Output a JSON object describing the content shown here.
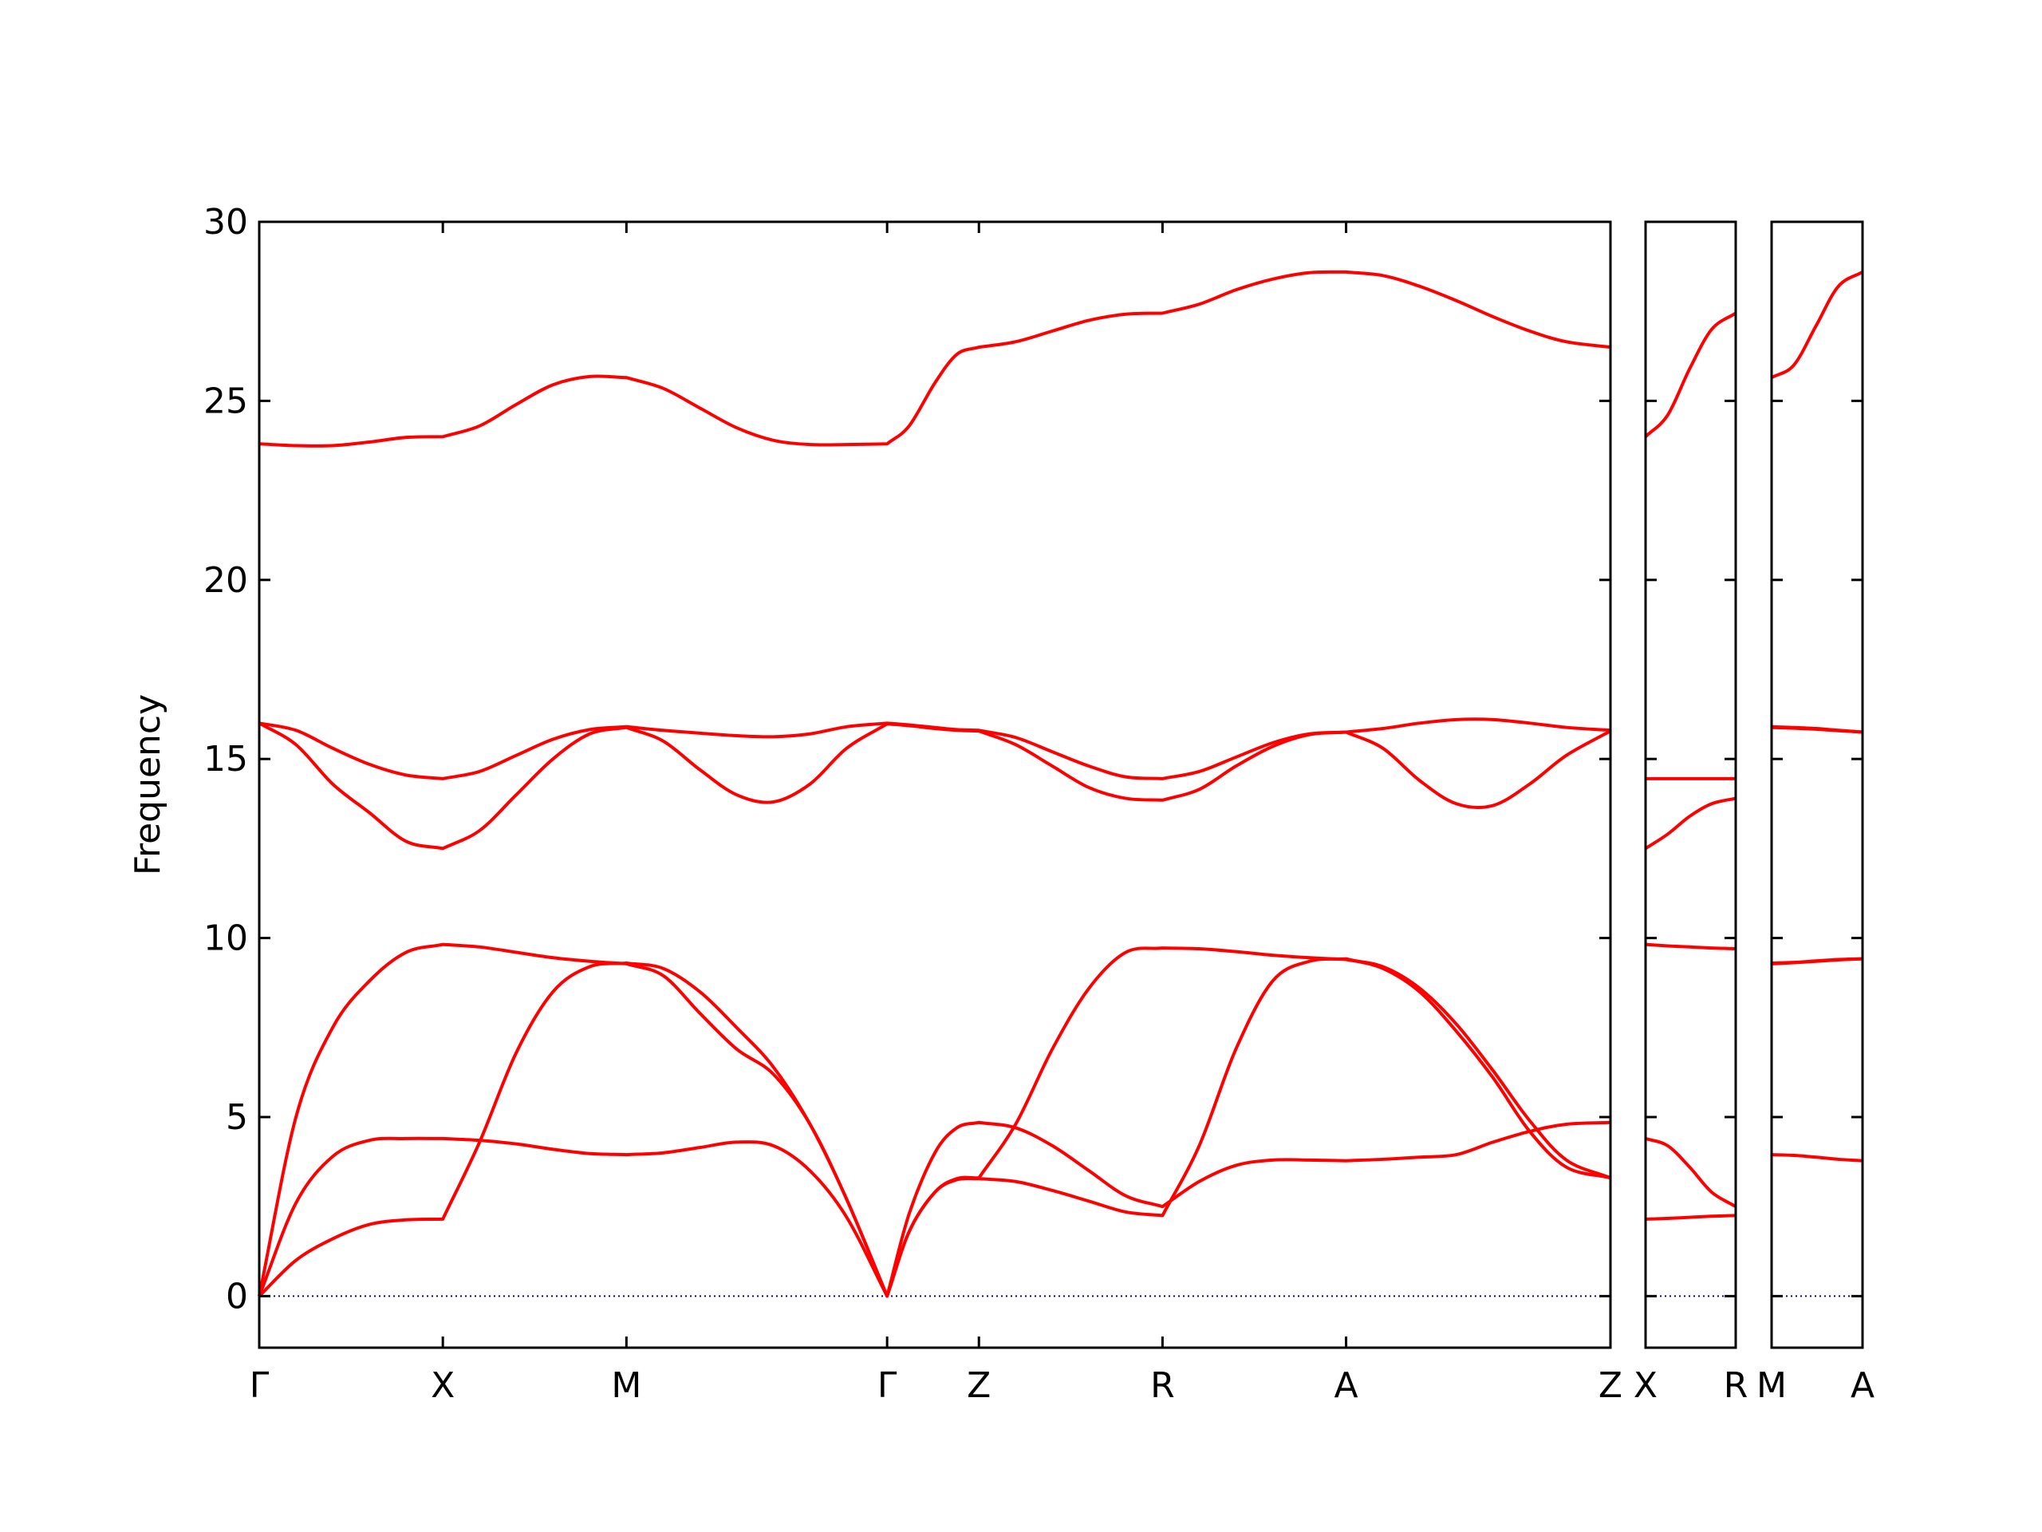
{
  "chart_data": [
    {
      "type": "line",
      "ylabel": "Frequency",
      "ylim": [
        -1.44,
        30
      ],
      "yticks": [
        0,
        5,
        10,
        15,
        20,
        25,
        30
      ],
      "ytick_labels": true,
      "xlim": [
        0,
        3.68
      ],
      "xticks": [
        {
          "value": 0,
          "label": "Γ"
        },
        {
          "value": 0.5,
          "label": "X"
        },
        {
          "value": 1.0,
          "label": "M"
        },
        {
          "value": 1.71,
          "label": "Γ"
        },
        {
          "value": 1.96,
          "label": "Z"
        },
        {
          "value": 2.46,
          "label": "R"
        },
        {
          "value": 2.96,
          "label": "A"
        },
        {
          "value": 3.68,
          "label": "Z"
        }
      ],
      "hline": 0,
      "hline_color": "#0000cc",
      "x": [
        0,
        0.1,
        0.2,
        0.3,
        0.4,
        0.5,
        0.6,
        0.7,
        0.8,
        0.9,
        1.0,
        1.1,
        1.2,
        1.3,
        1.4,
        1.5,
        1.6,
        1.71,
        1.77,
        1.84,
        1.9,
        1.96,
        2.06,
        2.16,
        2.26,
        2.36,
        2.46,
        2.56,
        2.66,
        2.76,
        2.86,
        2.96,
        3.06,
        3.16,
        3.26,
        3.36,
        3.46,
        3.56,
        3.68
      ],
      "series": [
        {
          "color": "#ff0000",
          "values": [
            23.8,
            23.75,
            23.75,
            23.85,
            23.98,
            24.0,
            24.3,
            24.9,
            25.45,
            25.68,
            25.65,
            25.35,
            24.8,
            24.25,
            23.9,
            23.78,
            23.78,
            23.8,
            24.3,
            25.5,
            26.3,
            26.5,
            26.65,
            26.95,
            27.25,
            27.42,
            27.45,
            27.7,
            28.1,
            28.4,
            28.58,
            28.6,
            28.5,
            28.2,
            27.8,
            27.35,
            26.95,
            26.65,
            26.5
          ]
        },
        {
          "color": "#ff0000",
          "values": [
            16.0,
            15.8,
            15.3,
            14.85,
            14.55,
            14.45,
            14.65,
            15.1,
            15.55,
            15.82,
            15.9,
            15.8,
            15.72,
            15.65,
            15.62,
            15.7,
            15.9,
            16.0,
            15.95,
            15.88,
            15.82,
            15.8,
            15.6,
            15.2,
            14.8,
            14.5,
            14.45,
            14.65,
            15.05,
            15.45,
            15.7,
            15.75,
            15.85,
            16.0,
            16.1,
            16.1,
            16.0,
            15.88,
            15.8
          ]
        },
        {
          "color": "#ff0000",
          "values": [
            16.0,
            15.4,
            14.3,
            13.5,
            12.7,
            12.5,
            13.0,
            14.0,
            15.0,
            15.7,
            15.88,
            15.5,
            14.7,
            14.0,
            13.8,
            14.3,
            15.3,
            15.98,
            15.93,
            15.85,
            15.8,
            15.78,
            15.4,
            14.8,
            14.2,
            13.9,
            13.85,
            14.15,
            14.8,
            15.35,
            15.68,
            15.75,
            15.3,
            14.4,
            13.75,
            13.7,
            14.3,
            15.1,
            15.78
          ]
        },
        {
          "color": "#ff0000",
          "values": [
            0,
            1.0,
            1.6,
            2.0,
            2.13,
            2.15,
            4.3,
            6.8,
            8.5,
            9.2,
            9.3,
            9.15,
            8.5,
            7.5,
            6.4,
            4.8,
            2.7,
            0,
            1.8,
            2.9,
            3.28,
            3.3,
            4.8,
            6.9,
            8.6,
            9.6,
            9.72,
            9.7,
            9.62,
            9.52,
            9.45,
            9.4,
            9.2,
            8.6,
            7.6,
            6.3,
            4.9,
            3.8,
            3.3
          ]
        },
        {
          "color": "#ff0000",
          "values": [
            0,
            2.6,
            3.9,
            4.35,
            4.4,
            4.4,
            4.35,
            4.25,
            4.1,
            3.98,
            3.95,
            4.0,
            4.15,
            4.3,
            4.2,
            3.5,
            2.2,
            0,
            2.3,
            4.0,
            4.7,
            4.85,
            4.7,
            4.2,
            3.5,
            2.8,
            2.5,
            3.2,
            3.65,
            3.8,
            3.8,
            3.78,
            3.82,
            3.88,
            3.95,
            4.3,
            4.6,
            4.8,
            4.85
          ]
        },
        {
          "color": "#ff0000",
          "values": [
            0,
            5.0,
            7.5,
            8.8,
            9.6,
            9.82,
            9.75,
            9.6,
            9.45,
            9.35,
            9.28,
            8.95,
            7.9,
            6.9,
            6.2,
            4.8,
            2.7,
            0,
            1.8,
            2.9,
            3.25,
            3.28,
            3.2,
            2.95,
            2.65,
            2.35,
            2.25,
            4.2,
            6.9,
            8.8,
            9.35,
            9.42,
            9.15,
            8.5,
            7.4,
            6.1,
            4.6,
            3.6,
            3.3
          ]
        }
      ]
    },
    {
      "type": "line",
      "ylim": [
        -1.44,
        30
      ],
      "yticks": [
        0,
        5,
        10,
        15,
        20,
        25,
        30
      ],
      "ytick_labels": false,
      "xlim": [
        0,
        0.245
      ],
      "xticks": [
        {
          "value": 0,
          "label": "X"
        },
        {
          "value": 0.245,
          "label": "R"
        }
      ],
      "hline": 0,
      "hline_color": "#0000cc",
      "x": [
        0,
        0.06,
        0.12,
        0.18,
        0.245
      ],
      "series": [
        {
          "color": "#ff0000",
          "values": [
            24.0,
            24.6,
            25.9,
            27.0,
            27.45
          ]
        },
        {
          "color": "#ff0000",
          "values": [
            14.45,
            14.45,
            14.45,
            14.45,
            14.45
          ]
        },
        {
          "color": "#ff0000",
          "values": [
            12.5,
            12.9,
            13.4,
            13.75,
            13.9
          ]
        },
        {
          "color": "#ff0000",
          "values": [
            9.82,
            9.78,
            9.75,
            9.72,
            9.7
          ]
        },
        {
          "color": "#ff0000",
          "values": [
            4.4,
            4.2,
            3.6,
            2.9,
            2.5
          ]
        },
        {
          "color": "#ff0000",
          "values": [
            2.15,
            2.17,
            2.2,
            2.23,
            2.25
          ]
        }
      ]
    },
    {
      "type": "line",
      "ylim": [
        -1.44,
        30
      ],
      "yticks": [
        0,
        5,
        10,
        15,
        20,
        25,
        30
      ],
      "ytick_labels": false,
      "xlim": [
        0,
        0.245
      ],
      "xticks": [
        {
          "value": 0,
          "label": "M"
        },
        {
          "value": 0.245,
          "label": "A"
        }
      ],
      "hline": 0,
      "hline_color": "#0000cc",
      "x": [
        0,
        0.06,
        0.12,
        0.18,
        0.245
      ],
      "series": [
        {
          "color": "#ff0000",
          "values": [
            25.65,
            26.0,
            27.1,
            28.2,
            28.6
          ]
        },
        {
          "color": "#ff0000",
          "values": [
            15.9,
            15.88,
            15.85,
            15.8,
            15.75
          ]
        },
        {
          "color": "#ff0000",
          "values": [
            15.88,
            15.86,
            15.83,
            15.79,
            15.75
          ]
        },
        {
          "color": "#ff0000",
          "values": [
            9.3,
            9.32,
            9.36,
            9.4,
            9.42
          ]
        },
        {
          "color": "#ff0000",
          "values": [
            9.28,
            9.31,
            9.35,
            9.39,
            9.42
          ]
        },
        {
          "color": "#ff0000",
          "values": [
            3.95,
            3.93,
            3.88,
            3.82,
            3.78
          ]
        }
      ]
    }
  ]
}
